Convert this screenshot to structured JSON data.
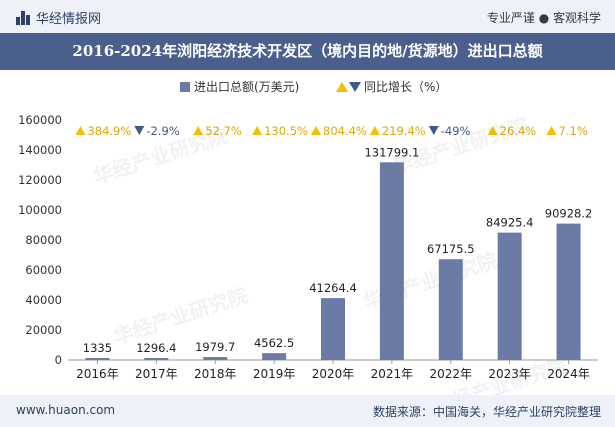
{
  "header": {
    "brand": "华经情报网",
    "tagline": "专业严谨 ● 客观科学"
  },
  "title": "2016-2024年浏阳经济技术开发区（境内目的地/货源地）进出口总额",
  "watermark_text": "华经产业研究院",
  "footer": {
    "website": "www.huaon.com",
    "source": "数据来源：中国海关，华经产业研究院整理"
  },
  "colors": {
    "bar": "#6b7ba5",
    "up": "#f2c200",
    "down": "#3d5a8a",
    "header_bg": "#4a5f8c"
  },
  "chart_data": {
    "type": "bar",
    "categories": [
      "2016年",
      "2017年",
      "2018年",
      "2019年",
      "2020年",
      "2021年",
      "2022年",
      "2023年",
      "2024年"
    ],
    "series": [
      {
        "name": "进出口总额(万美元)",
        "values": [
          1335,
          1296.4,
          1979.7,
          4562.5,
          41264.4,
          131799.1,
          67175.5,
          84925.4,
          90928.2
        ],
        "labels": [
          "1335",
          "1296.4",
          "1979.7",
          "4562.5",
          "41264.4",
          "131799.1",
          "67175.5",
          "84925.4",
          "90928.2"
        ]
      }
    ],
    "growth": {
      "name": "同比增长（%）",
      "labels": [
        "384.9%",
        "-2.9%",
        "52.7%",
        "130.5%",
        "804.4%",
        "219.4%",
        "-49%",
        "26.4%",
        "7.1%"
      ],
      "direction": [
        "up",
        "down",
        "up",
        "up",
        "up",
        "up",
        "down",
        "up",
        "up"
      ]
    },
    "ylim": [
      0,
      160000
    ],
    "yticks": [
      "0",
      "20000",
      "40000",
      "60000",
      "80000",
      "100000",
      "120000",
      "140000",
      "160000"
    ],
    "legend_position": "top-center",
    "grid": false
  }
}
